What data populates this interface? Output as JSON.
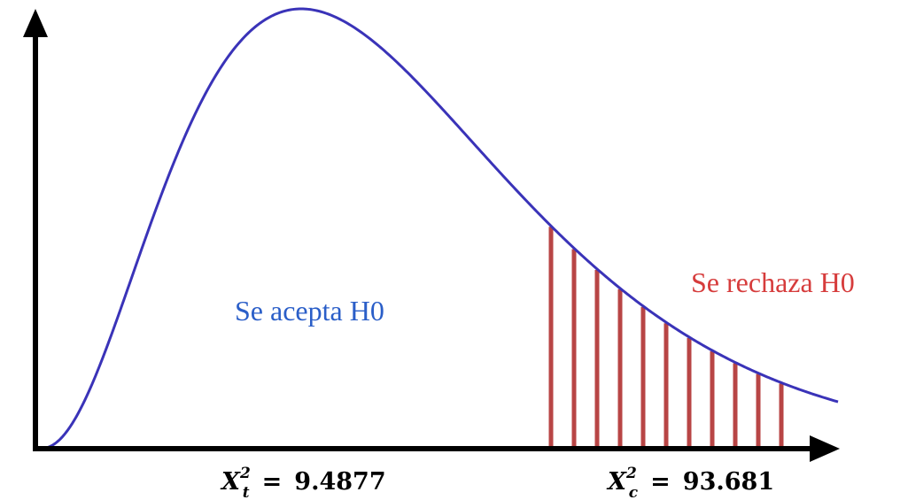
{
  "labels": {
    "accept_region": "Se acepta H0",
    "reject_region": "Se rechaza H0"
  },
  "critical_values": {
    "tabulated": {
      "symbol": "X",
      "superscript": "2",
      "subscript": "t",
      "equals": "=",
      "value": "9.4877"
    },
    "calculated": {
      "symbol": "X",
      "superscript": "2",
      "subscript": "c",
      "equals": "=",
      "value": "93.681"
    }
  },
  "colors": {
    "curve": "#3a33b8",
    "accept_label": "#2a5ec8",
    "reject_label": "#d63c3c",
    "hatch": "#b84545",
    "axes": "#000000"
  }
}
